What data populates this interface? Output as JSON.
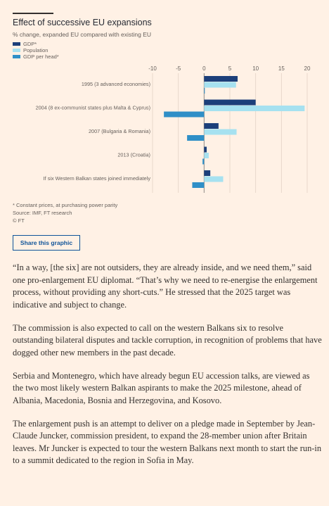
{
  "chart_data": {
    "type": "bar",
    "orientation": "horizontal",
    "title": "Effect of successive EU expansions",
    "subtitle": "% change, expanded EU compared with existing EU",
    "categories": [
      "1995 (3 advanced economies)",
      "2004 (8 ex-communist states plus Malta & Cyprus)",
      "2007 (Bulgaria & Romania)",
      "2013 (Croatia)",
      "If six Western Balkan states joined immediately"
    ],
    "series": [
      {
        "name": "GDP*",
        "color": "#1c3f7a",
        "values": [
          6.5,
          10,
          2.8,
          0.5,
          1.2
        ]
      },
      {
        "name": "Population",
        "color": "#a6e1f0",
        "values": [
          6.2,
          19.5,
          6.3,
          0.9,
          3.7
        ]
      },
      {
        "name": "GDP per head*",
        "color": "#2f8fc7",
        "values": [
          0.1,
          -7.8,
          -3.3,
          -0.3,
          -2.3
        ]
      }
    ],
    "xticks": [
      -10,
      -5,
      0,
      5,
      10,
      15,
      20
    ],
    "xlim": [
      -10,
      20
    ],
    "legend": "top-left",
    "grid": true
  },
  "footnotes": {
    "note": "* Constant prices, at purchasing power parity",
    "source": "Source: IMF, FT research",
    "copyright": "© FT"
  },
  "share_label": "Share this graphic",
  "article": {
    "paragraphs": [
      "“In a way, [the six] are not outsiders, they are already inside, and we need them,” said one pro-enlargement EU diplomat. “That’s why we need to re-energise the enlargement process, without providing any short-cuts.” He stressed that the 2025 target was indicative and subject to change.",
      "The commission is also expected to call on the western Balkans six to resolve outstanding bilateral disputes and tackle corruption, in recognition of problems that have dogged other new members in the past decade.",
      "Serbia and Montenegro, which have already begun EU accession talks, are viewed as the two most likely western Balkan aspirants to make the 2025 milestone, ahead of Albania, Macedonia, Bosnia and Herzegovina, and Kosovo.",
      "The enlargement push is an attempt to deliver on a pledge made in September by Jean-Claude Juncker, commission president, to expand the 28-member union after Britain leaves. Mr Juncker is expected to tour the western Balkans next month to start the run-in to a summit dedicated to the region in Sofia in May."
    ]
  }
}
